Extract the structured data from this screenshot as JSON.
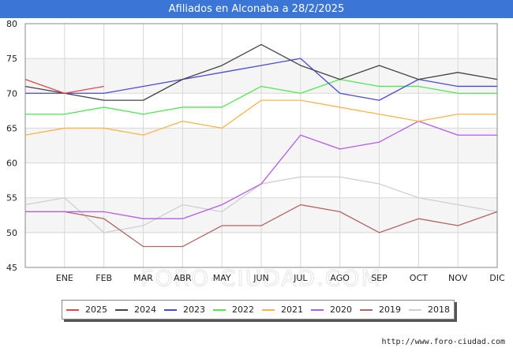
{
  "header": {
    "title": "Afiliados en Alconaba a 28/2/2025"
  },
  "watermark": "FORO-CIUDAD.COM",
  "source": "http://www.foro-ciudad.com",
  "chart_data": {
    "type": "line",
    "x_labels": [
      "ENE",
      "FEB",
      "MAR",
      "ABR",
      "MAY",
      "JUN",
      "JUL",
      "AGO",
      "SEP",
      "OCT",
      "NOV",
      "DIC"
    ],
    "ylim": [
      45,
      80
    ],
    "y_ticks": [
      45,
      50,
      55,
      60,
      65,
      70,
      75,
      80
    ],
    "grid": true,
    "legend_position": "bottom",
    "series": [
      {
        "name": "2025",
        "color": "#e8454a",
        "values": [
          72,
          70,
          71
        ]
      },
      {
        "name": "2024",
        "color": "#444444",
        "values": [
          71,
          70,
          69,
          69,
          72,
          74,
          77,
          74,
          72,
          74,
          72,
          73,
          72
        ]
      },
      {
        "name": "2023",
        "color": "#4a4ad8",
        "values": [
          70,
          70,
          70,
          71,
          72,
          73,
          74,
          75,
          70,
          69,
          72,
          71,
          71
        ]
      },
      {
        "name": "2022",
        "color": "#4fe84f",
        "values": [
          67,
          67,
          68,
          67,
          68,
          68,
          71,
          70,
          72,
          71,
          71,
          70,
          70
        ]
      },
      {
        "name": "2021",
        "color": "#ffb44a",
        "values": [
          64,
          65,
          65,
          64,
          66,
          65,
          69,
          69,
          68,
          67,
          66,
          67,
          67
        ]
      },
      {
        "name": "2020",
        "color": "#b35ce8",
        "values": [
          53,
          53,
          53,
          52,
          52,
          54,
          57,
          64,
          62,
          63,
          66,
          64,
          64
        ]
      },
      {
        "name": "2019",
        "color": "#b36464",
        "values": [
          53,
          53,
          52,
          48,
          48,
          51,
          51,
          54,
          53,
          50,
          52,
          51,
          53
        ]
      },
      {
        "name": "2018",
        "color": "#cfcfcf",
        "values": [
          54,
          55,
          50,
          51,
          54,
          53,
          57,
          58,
          58,
          57,
          55,
          54,
          53
        ]
      }
    ]
  }
}
